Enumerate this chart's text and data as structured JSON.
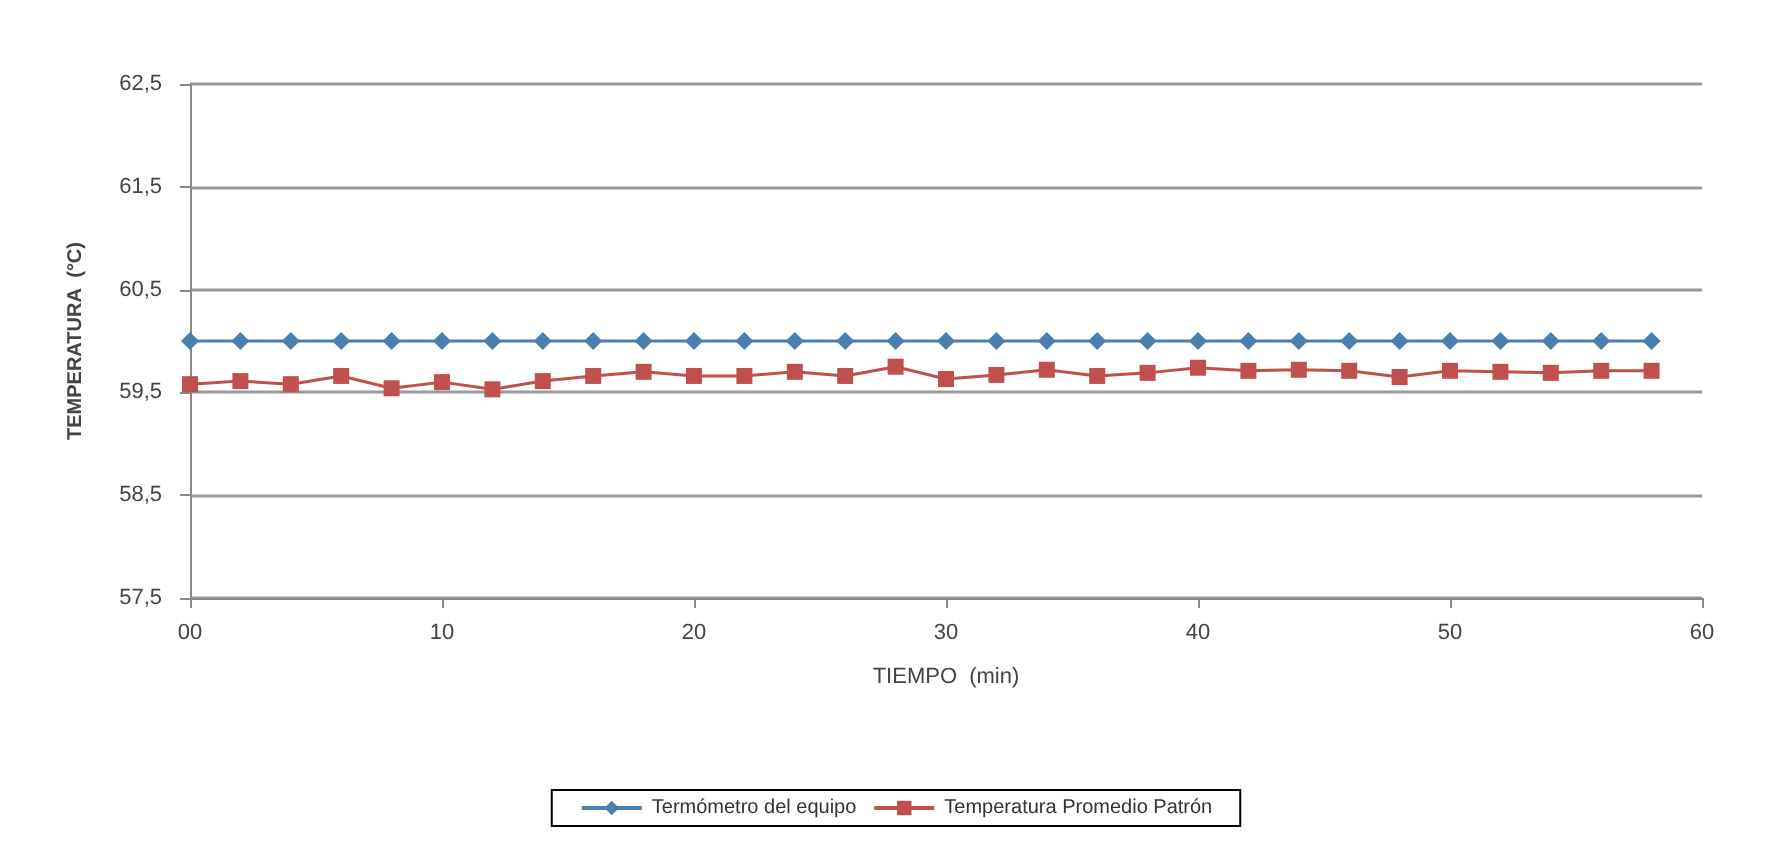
{
  "chart_data": {
    "type": "line",
    "xlabel": "TIEMPO  (min)",
    "ylabel": "TEMPERATURA  (°C)",
    "x": [
      0,
      2,
      4,
      6,
      8,
      10,
      12,
      14,
      16,
      18,
      20,
      22,
      24,
      26,
      28,
      30,
      32,
      34,
      36,
      38,
      40,
      42,
      44,
      46,
      48,
      50,
      52,
      54,
      56,
      58
    ],
    "series": [
      {
        "name": "Termómetro del equipo",
        "color": "#4a7eb0",
        "marker": "diamond",
        "values": [
          60,
          60,
          60,
          60,
          60,
          60,
          60,
          60,
          60,
          60,
          60,
          60,
          60,
          60,
          60,
          60,
          60,
          60,
          60,
          60,
          60,
          60,
          60,
          60,
          60,
          60,
          60,
          60,
          60,
          60
        ]
      },
      {
        "name": "Temperatura Promedio Patrón",
        "color": "#c0504d",
        "marker": "square",
        "values": [
          59.58,
          59.61,
          59.58,
          59.66,
          59.54,
          59.6,
          59.53,
          59.61,
          59.66,
          59.7,
          59.66,
          59.66,
          59.7,
          59.66,
          59.75,
          59.63,
          59.67,
          59.72,
          59.66,
          59.69,
          59.74,
          59.71,
          59.72,
          59.71,
          59.65,
          59.71,
          59.7,
          59.69,
          59.71,
          59.71
        ]
      }
    ],
    "xlim": [
      0,
      60
    ],
    "xticks": [
      {
        "value": 0,
        "label": "00"
      },
      10,
      20,
      30,
      40,
      50,
      60
    ],
    "ylim": [
      57.5,
      62.5
    ],
    "yticks": [
      {
        "value": 57.5,
        "label": "57,5"
      },
      {
        "value": 58.5,
        "label": "58,5"
      },
      {
        "value": 59.5,
        "label": "59,5"
      },
      {
        "value": 60.5,
        "label": "60,5"
      },
      {
        "value": 61.5,
        "label": "61,5"
      },
      {
        "value": 62.5,
        "label": "62,5"
      }
    ],
    "grid": "y",
    "legend": "bottom",
    "line_style": "solid"
  }
}
